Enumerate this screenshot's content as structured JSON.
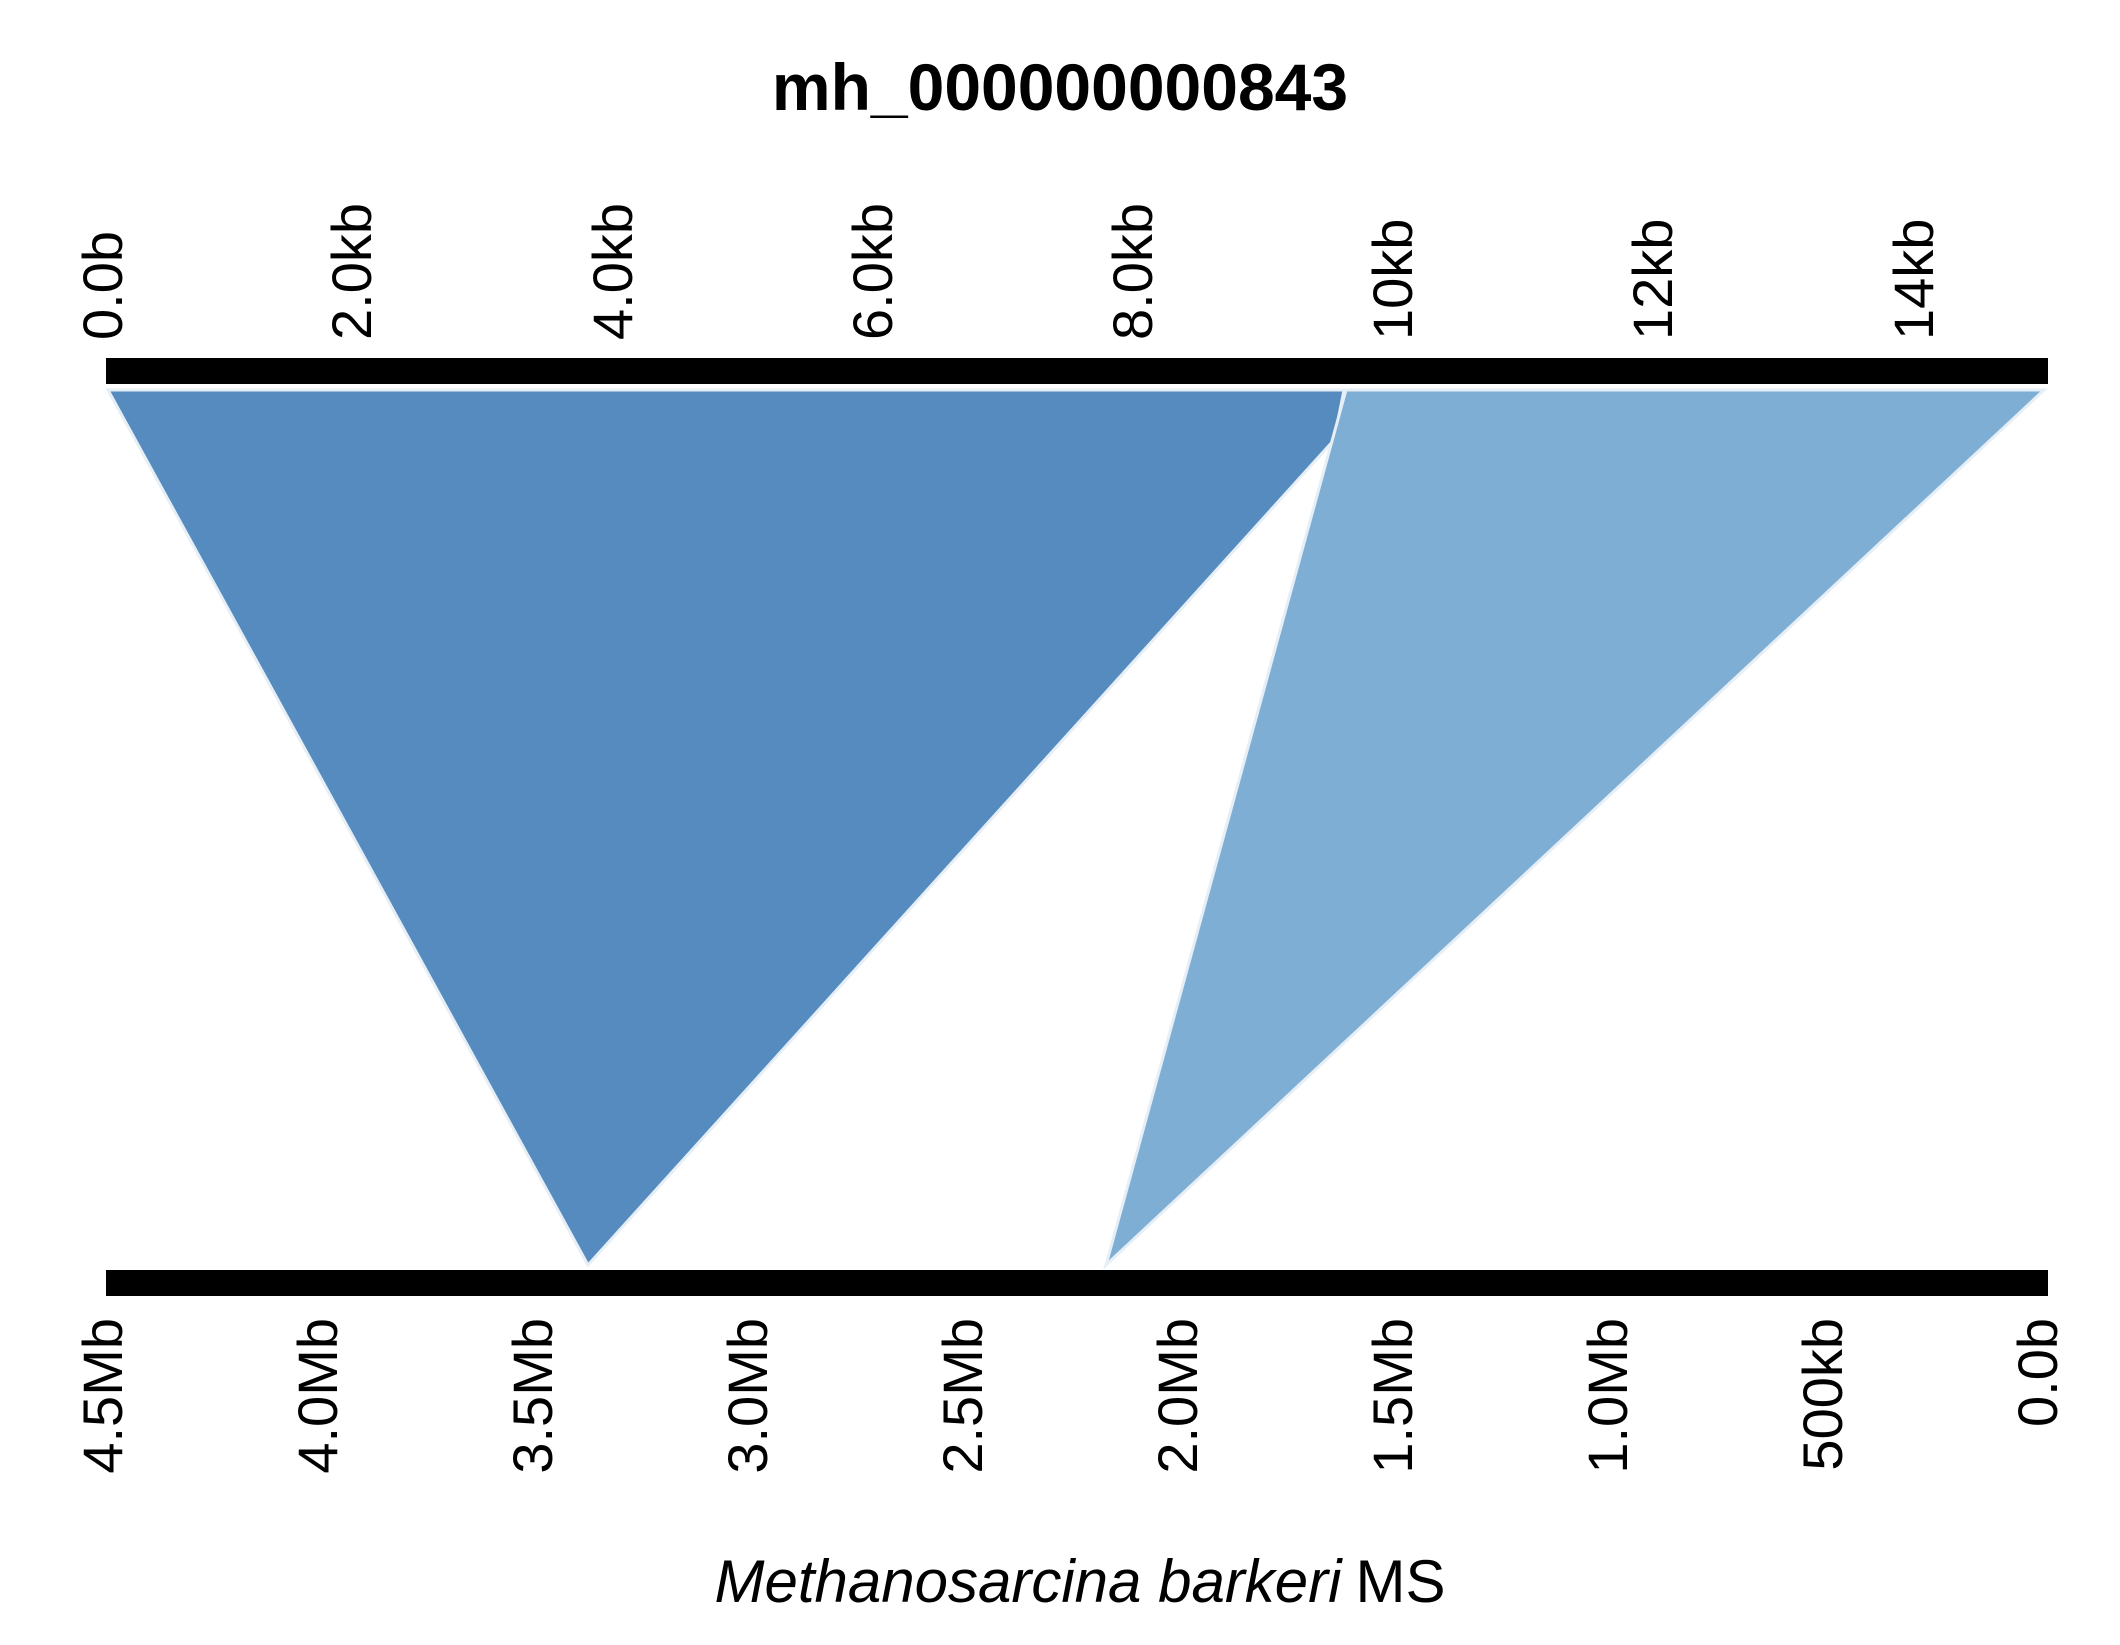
{
  "title": "mh_000000000843",
  "top_track": {
    "tick_labels": [
      "0.0b",
      "2.0kb",
      "4.0kb",
      "6.0kb",
      "8.0kb",
      "10kb",
      "12kb",
      "14kb"
    ]
  },
  "bottom_track": {
    "tick_labels": [
      "4.5Mb",
      "4.0Mb",
      "3.5Mb",
      "3.0Mb",
      "2.5Mb",
      "2.0Mb",
      "1.5Mb",
      "1.0Mb",
      "500kb",
      "0.0b"
    ],
    "label_species": "Methanosarcina barkeri",
    "label_strain": "MS"
  },
  "alignments": [
    {
      "color": "#558BBF"
    },
    {
      "color": "#7FAED5"
    }
  ],
  "colors": {
    "track": "#000000",
    "outline": "#e6eef6"
  }
}
